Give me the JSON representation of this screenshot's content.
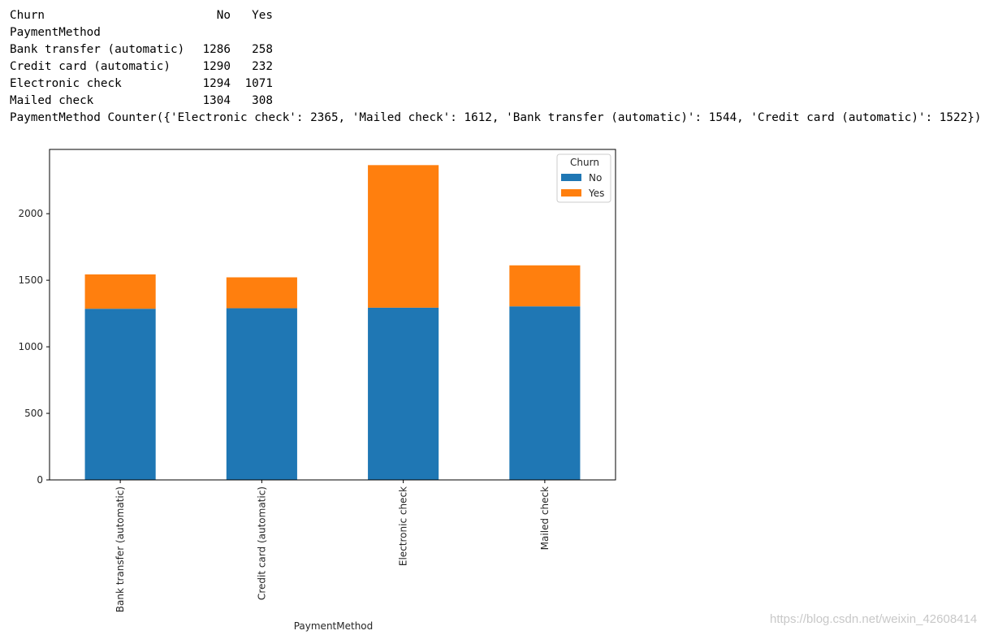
{
  "console": {
    "header": {
      "col_label": "Churn",
      "no": "No",
      "yes": "Yes"
    },
    "index_name": "PaymentMethod",
    "rows": [
      {
        "method": "Bank transfer (automatic)",
        "no": "1286",
        "yes": "258"
      },
      {
        "method": "Credit card (automatic)",
        "no": "1290",
        "yes": "232"
      },
      {
        "method": "Electronic check",
        "no": "1294",
        "yes": "1071"
      },
      {
        "method": "Mailed check",
        "no": "1304",
        "yes": "308"
      }
    ],
    "counter_line": "PaymentMethod Counter({'Electronic check': 2365, 'Mailed check': 1612, 'Bank transfer (automatic)': 1544, 'Credit card (automatic)': 1522})"
  },
  "chart_data": {
    "type": "bar",
    "stacked": true,
    "categories": [
      "Bank transfer (automatic)",
      "Credit card (automatic)",
      "Electronic check",
      "Mailed check"
    ],
    "series": [
      {
        "name": "No",
        "values": [
          1286,
          1290,
          1294,
          1304
        ],
        "color": "#1f77b4"
      },
      {
        "name": "Yes",
        "values": [
          258,
          232,
          1071,
          308
        ],
        "color": "#ff7f0e"
      }
    ],
    "xlabel": "PaymentMethod",
    "ylabel": "",
    "ylim": [
      0,
      2483
    ],
    "yticks": [
      0,
      500,
      1000,
      1500,
      2000
    ],
    "legend": {
      "title": "Churn",
      "placement": "top-right"
    },
    "grid": false
  },
  "watermark": "https://blog.csdn.net/weixin_42608414"
}
